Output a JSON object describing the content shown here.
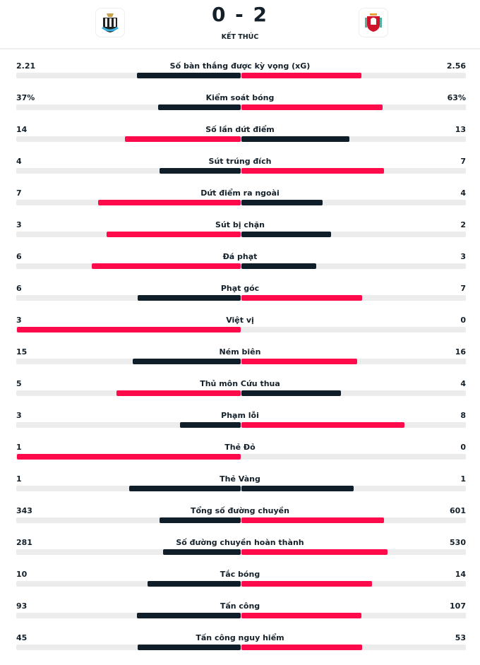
{
  "header": {
    "score": "0 - 2",
    "status": "KẾT THÚC",
    "home_logo": "newcastle-crest",
    "away_logo": "liverpool-crest"
  },
  "colors": {
    "leader": "#ff0a4a",
    "other": "#0f1e28",
    "track": "#ececec"
  },
  "stats": [
    {
      "label": "Số bàn thắng được kỳ vọng (xG)",
      "home": "2.21",
      "away": "2.56"
    },
    {
      "label": "Kiểm soát bóng",
      "home": "37%",
      "away": "63%"
    },
    {
      "label": "Số lần dứt điểm",
      "home": "14",
      "away": "13"
    },
    {
      "label": "Sút trúng đích",
      "home": "4",
      "away": "7"
    },
    {
      "label": "Dứt điểm ra ngoài",
      "home": "7",
      "away": "4"
    },
    {
      "label": "Sút bị chặn",
      "home": "3",
      "away": "2"
    },
    {
      "label": "Đá phạt",
      "home": "6",
      "away": "3"
    },
    {
      "label": "Phạt góc",
      "home": "6",
      "away": "7"
    },
    {
      "label": "Việt vị",
      "home": "3",
      "away": "0"
    },
    {
      "label": "Ném biên",
      "home": "15",
      "away": "16"
    },
    {
      "label": "Thủ môn Cứu thua",
      "home": "5",
      "away": "4"
    },
    {
      "label": "Phạm lỗi",
      "home": "3",
      "away": "8"
    },
    {
      "label": "Thẻ Đỏ",
      "home": "1",
      "away": "0"
    },
    {
      "label": "Thẻ Vàng",
      "home": "1",
      "away": "1"
    },
    {
      "label": "Tổng số đường chuyền",
      "home": "343",
      "away": "601"
    },
    {
      "label": "Số đường chuyền hoàn thành",
      "home": "281",
      "away": "530"
    },
    {
      "label": "Tắc bóng",
      "home": "10",
      "away": "14"
    },
    {
      "label": "Tấn công",
      "home": "93",
      "away": "107"
    },
    {
      "label": "Tấn công nguy hiểm",
      "home": "45",
      "away": "53"
    }
  ]
}
